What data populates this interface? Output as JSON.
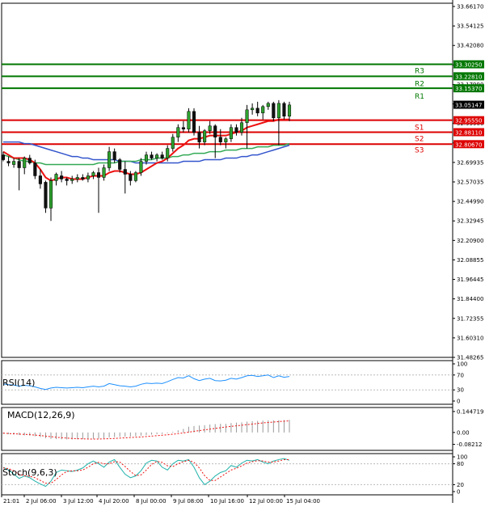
{
  "chart_data": {
    "type": "candlestick",
    "instrument_note": "",
    "price_axis": {
      "ticks": [
        "33.66170",
        "33.54125",
        "33.42080",
        "33.30250",
        "33.17990",
        "33.05147",
        "32.93900",
        "32.81855",
        "32.69935",
        "32.57035",
        "32.44990",
        "32.32945",
        "32.20900",
        "32.08855",
        "31.96445",
        "31.84400",
        "31.72355",
        "31.60310",
        "31.48265"
      ],
      "range": [
        31.48265,
        33.6617
      ]
    },
    "time_axis": {
      "labels": [
        "21:01",
        "2 Jul 06:00",
        "3 Jul 12:00",
        "4 Jul 20:00",
        "8 Jul 00:00",
        "9 Jul 08:00",
        "10 Jul 16:00",
        "12 Jul 00:00",
        "15 Jul 04:00"
      ]
    },
    "levels": [
      {
        "name": "R3",
        "value": 33.3025,
        "tag": "33.30250",
        "color": "#007700"
      },
      {
        "name": "R2",
        "value": 33.2281,
        "tag": "33.22810",
        "color": "#007700"
      },
      {
        "name": "R1",
        "value": 33.1537,
        "tag": "33.15370",
        "color": "#007700"
      },
      {
        "name": "",
        "value": 32.9555,
        "tag": "32.95550",
        "color": "#dd0000"
      },
      {
        "name": "S1",
        "value": 32.8811,
        "tag": "32.88110",
        "color": "#dd0000"
      },
      {
        "name": "S2",
        "value": 32.8067,
        "tag": "32.80670",
        "color": "#dd0000"
      },
      {
        "name": "S3",
        "value": null,
        "tag": "",
        "color": "#dd0000"
      }
    ],
    "current_price": {
      "value": 33.05147,
      "tag": "33.05147"
    },
    "candles": [
      {
        "o": 32.74,
        "h": 32.76,
        "l": 32.7,
        "c": 32.71
      },
      {
        "o": 32.7,
        "h": 32.73,
        "l": 32.67,
        "c": 32.69
      },
      {
        "o": 32.68,
        "h": 32.72,
        "l": 32.66,
        "c": 32.7
      },
      {
        "o": 32.7,
        "h": 32.72,
        "l": 32.52,
        "c": 32.66
      },
      {
        "o": 32.66,
        "h": 32.73,
        "l": 32.62,
        "c": 32.72
      },
      {
        "o": 32.72,
        "h": 32.74,
        "l": 32.68,
        "c": 32.69
      },
      {
        "o": 32.69,
        "h": 32.71,
        "l": 32.59,
        "c": 32.61
      },
      {
        "o": 32.61,
        "h": 32.65,
        "l": 32.53,
        "c": 32.56
      },
      {
        "o": 32.57,
        "h": 32.58,
        "l": 32.38,
        "c": 32.41
      },
      {
        "o": 32.41,
        "h": 32.6,
        "l": 32.33,
        "c": 32.58
      },
      {
        "o": 32.58,
        "h": 32.63,
        "l": 32.55,
        "c": 32.62
      },
      {
        "o": 32.61,
        "h": 32.64,
        "l": 32.57,
        "c": 32.59
      },
      {
        "o": 32.59,
        "h": 32.6,
        "l": 32.55,
        "c": 32.58
      },
      {
        "o": 32.58,
        "h": 32.61,
        "l": 32.56,
        "c": 32.59
      },
      {
        "o": 32.59,
        "h": 32.62,
        "l": 32.57,
        "c": 32.6
      },
      {
        "o": 32.6,
        "h": 32.62,
        "l": 32.58,
        "c": 32.59
      },
      {
        "o": 32.59,
        "h": 32.63,
        "l": 32.57,
        "c": 32.61
      },
      {
        "o": 32.61,
        "h": 32.64,
        "l": 32.59,
        "c": 32.63
      },
      {
        "o": 32.63,
        "h": 32.66,
        "l": 32.38,
        "c": 32.6
      },
      {
        "o": 32.6,
        "h": 32.68,
        "l": 32.58,
        "c": 32.66
      },
      {
        "o": 32.66,
        "h": 32.79,
        "l": 32.64,
        "c": 32.76
      },
      {
        "o": 32.76,
        "h": 32.78,
        "l": 32.69,
        "c": 32.71
      },
      {
        "o": 32.71,
        "h": 32.72,
        "l": 32.63,
        "c": 32.65
      },
      {
        "o": 32.65,
        "h": 32.7,
        "l": 32.5,
        "c": 32.62
      },
      {
        "o": 32.62,
        "h": 32.64,
        "l": 32.55,
        "c": 32.58
      },
      {
        "o": 32.58,
        "h": 32.64,
        "l": 32.57,
        "c": 32.63
      },
      {
        "o": 32.63,
        "h": 32.72,
        "l": 32.61,
        "c": 32.7
      },
      {
        "o": 32.7,
        "h": 32.76,
        "l": 32.68,
        "c": 32.74
      },
      {
        "o": 32.74,
        "h": 32.76,
        "l": 32.71,
        "c": 32.72
      },
      {
        "o": 32.72,
        "h": 32.75,
        "l": 32.7,
        "c": 32.74
      },
      {
        "o": 32.74,
        "h": 32.76,
        "l": 32.71,
        "c": 32.72
      },
      {
        "o": 32.72,
        "h": 32.8,
        "l": 32.7,
        "c": 32.78
      },
      {
        "o": 32.78,
        "h": 32.87,
        "l": 32.76,
        "c": 32.85
      },
      {
        "o": 32.85,
        "h": 32.93,
        "l": 32.82,
        "c": 32.91
      },
      {
        "o": 32.91,
        "h": 32.95,
        "l": 32.88,
        "c": 32.9
      },
      {
        "o": 32.9,
        "h": 33.03,
        "l": 32.88,
        "c": 33.01
      },
      {
        "o": 33.01,
        "h": 33.03,
        "l": 32.86,
        "c": 32.88
      },
      {
        "o": 32.88,
        "h": 32.92,
        "l": 32.78,
        "c": 32.82
      },
      {
        "o": 32.82,
        "h": 32.9,
        "l": 32.8,
        "c": 32.89
      },
      {
        "o": 32.89,
        "h": 32.95,
        "l": 32.87,
        "c": 32.92
      },
      {
        "o": 32.92,
        "h": 32.93,
        "l": 32.72,
        "c": 32.85
      },
      {
        "o": 32.85,
        "h": 32.9,
        "l": 32.8,
        "c": 32.82
      },
      {
        "o": 32.82,
        "h": 32.85,
        "l": 32.78,
        "c": 32.84
      },
      {
        "o": 32.84,
        "h": 32.93,
        "l": 32.82,
        "c": 32.91
      },
      {
        "o": 32.91,
        "h": 32.93,
        "l": 32.86,
        "c": 32.88
      },
      {
        "o": 32.88,
        "h": 32.97,
        "l": 32.86,
        "c": 32.94
      },
      {
        "o": 32.94,
        "h": 33.05,
        "l": 32.78,
        "c": 33.02
      },
      {
        "o": 33.02,
        "h": 33.06,
        "l": 32.99,
        "c": 33.03
      },
      {
        "o": 33.03,
        "h": 33.07,
        "l": 32.98,
        "c": 33.0
      },
      {
        "o": 33.0,
        "h": 33.05,
        "l": 32.96,
        "c": 33.04
      },
      {
        "o": 33.04,
        "h": 33.07,
        "l": 33.02,
        "c": 33.06
      },
      {
        "o": 33.06,
        "h": 33.07,
        "l": 32.95,
        "c": 32.97
      },
      {
        "o": 32.97,
        "h": 33.08,
        "l": 32.8,
        "c": 33.06
      },
      {
        "o": 33.06,
        "h": 33.07,
        "l": 32.96,
        "c": 32.98
      },
      {
        "o": 32.98,
        "h": 33.07,
        "l": 32.95,
        "c": 33.05
      }
    ],
    "ma_fast": [
      32.76,
      32.74,
      32.72,
      32.72,
      32.72,
      32.71,
      32.69,
      32.65,
      32.6,
      32.58,
      32.59,
      32.6,
      32.6,
      32.59,
      32.59,
      32.59,
      32.6,
      32.61,
      32.61,
      32.61,
      32.63,
      32.64,
      32.64,
      32.63,
      32.62,
      32.62,
      32.63,
      32.65,
      32.67,
      32.69,
      32.7,
      32.72,
      32.75,
      32.78,
      32.8,
      32.83,
      32.84,
      32.84,
      32.85,
      32.86,
      32.86,
      32.86,
      32.86,
      32.87,
      32.88,
      32.89,
      32.91,
      32.92,
      32.93,
      32.94,
      32.95,
      32.95,
      32.96,
      32.96,
      32.96
    ],
    "ma_mid": [
      32.74,
      32.73,
      32.72,
      32.71,
      32.7,
      32.7,
      32.69,
      32.69,
      32.68,
      32.68,
      32.68,
      32.68,
      32.68,
      32.68,
      32.68,
      32.68,
      32.68,
      32.68,
      32.69,
      32.69,
      32.69,
      32.69,
      32.7,
      32.7,
      32.7,
      32.7,
      32.71,
      32.71,
      32.71,
      32.72,
      32.72,
      32.72,
      32.73,
      32.73,
      32.74,
      32.74,
      32.75,
      32.75,
      32.75,
      32.76,
      32.76,
      32.76,
      32.77,
      32.77,
      32.77,
      32.78,
      32.78,
      32.78,
      32.79,
      32.79,
      32.79,
      32.8,
      32.8,
      32.8,
      32.81
    ],
    "ma_slow": [
      32.82,
      32.82,
      32.82,
      32.82,
      32.81,
      32.81,
      32.8,
      32.79,
      32.78,
      32.77,
      32.76,
      32.75,
      32.74,
      32.73,
      32.73,
      32.72,
      32.72,
      32.71,
      32.71,
      32.71,
      32.71,
      32.71,
      32.7,
      32.7,
      32.7,
      32.69,
      32.69,
      32.69,
      32.69,
      32.69,
      32.69,
      32.69,
      32.69,
      32.69,
      32.7,
      32.7,
      32.7,
      32.7,
      32.71,
      32.71,
      32.71,
      32.71,
      32.72,
      32.72,
      32.72,
      32.73,
      32.73,
      32.74,
      32.74,
      32.75,
      32.76,
      32.77,
      32.78,
      32.79,
      32.8
    ],
    "rsi": {
      "label": "RSI(14)",
      "ticks": [
        "100",
        "70",
        "30",
        "0"
      ],
      "range": [
        0,
        100
      ],
      "values": [
        46,
        44,
        43,
        40,
        42,
        41,
        38,
        34,
        31,
        35,
        37,
        36,
        35,
        36,
        37,
        36,
        38,
        40,
        38,
        40,
        47,
        44,
        41,
        40,
        38,
        40,
        45,
        48,
        47,
        48,
        47,
        52,
        58,
        63,
        62,
        68,
        60,
        55,
        59,
        61,
        55,
        54,
        56,
        61,
        59,
        63,
        68,
        69,
        66,
        68,
        70,
        63,
        68,
        64,
        66
      ]
    },
    "macd": {
      "label": "MACD(12,26,9)",
      "ticks": [
        "0.144719",
        "0.00",
        "-0.08212"
      ],
      "range": [
        -0.09,
        0.15
      ],
      "hist": [
        -0.01,
        -0.012,
        -0.014,
        -0.018,
        -0.02,
        -0.022,
        -0.026,
        -0.032,
        -0.04,
        -0.044,
        -0.046,
        -0.047,
        -0.048,
        -0.048,
        -0.047,
        -0.046,
        -0.045,
        -0.043,
        -0.042,
        -0.04,
        -0.035,
        -0.032,
        -0.03,
        -0.029,
        -0.028,
        -0.026,
        -0.022,
        -0.018,
        -0.015,
        -0.012,
        -0.01,
        -0.005,
        0.005,
        0.015,
        0.025,
        0.04,
        0.045,
        0.048,
        0.05,
        0.055,
        0.058,
        0.06,
        0.06,
        0.065,
        0.068,
        0.07,
        0.075,
        0.078,
        0.08,
        0.082,
        0.084,
        0.084,
        0.085,
        0.086,
        0.087
      ],
      "signal": [
        -0.005,
        -0.007,
        -0.009,
        -0.011,
        -0.013,
        -0.015,
        -0.018,
        -0.021,
        -0.025,
        -0.029,
        -0.033,
        -0.036,
        -0.039,
        -0.041,
        -0.043,
        -0.044,
        -0.045,
        -0.045,
        -0.045,
        -0.044,
        -0.043,
        -0.041,
        -0.039,
        -0.037,
        -0.035,
        -0.033,
        -0.031,
        -0.028,
        -0.025,
        -0.022,
        -0.019,
        -0.016,
        -0.012,
        -0.008,
        -0.003,
        0.002,
        0.008,
        0.013,
        0.018,
        0.023,
        0.028,
        0.033,
        0.038,
        0.042,
        0.046,
        0.05,
        0.054,
        0.058,
        0.062,
        0.066,
        0.069,
        0.072,
        0.075,
        0.078,
        0.08
      ]
    },
    "stoch": {
      "label": "Stoch(9,6,3)",
      "ticks": [
        "100",
        "80",
        "20",
        "0"
      ],
      "range": [
        0,
        100
      ],
      "main": [
        70,
        62,
        50,
        38,
        45,
        40,
        30,
        22,
        15,
        30,
        55,
        62,
        60,
        58,
        62,
        68,
        80,
        88,
        80,
        70,
        85,
        92,
        70,
        50,
        40,
        45,
        60,
        82,
        90,
        88,
        70,
        62,
        80,
        90,
        88,
        92,
        70,
        40,
        20,
        30,
        45,
        55,
        60,
        75,
        70,
        82,
        90,
        88,
        92,
        85,
        80,
        88,
        92,
        95,
        90
      ],
      "signal": [
        68,
        66,
        60,
        50,
        46,
        44,
        40,
        32,
        24,
        24,
        35,
        48,
        58,
        60,
        60,
        62,
        70,
        80,
        84,
        80,
        80,
        86,
        85,
        72,
        58,
        46,
        48,
        62,
        78,
        87,
        84,
        74,
        72,
        80,
        86,
        90,
        84,
        68,
        46,
        32,
        32,
        42,
        52,
        62,
        67,
        74,
        82,
        86,
        89,
        88,
        85,
        85,
        88,
        92,
        92
      ]
    }
  }
}
